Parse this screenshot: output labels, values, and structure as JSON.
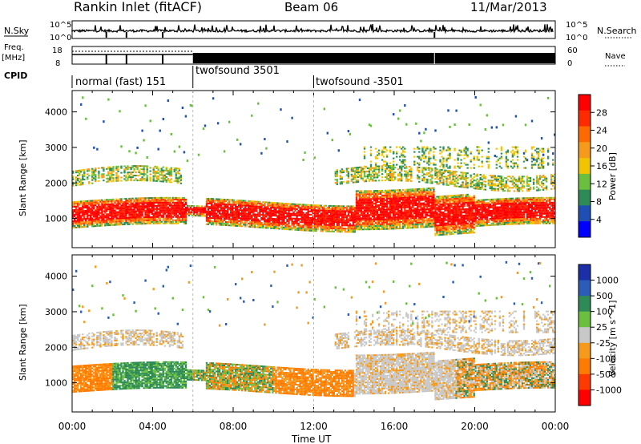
{
  "header": {
    "station": "Rankin Inlet (fitACF)",
    "beam": "Beam 06",
    "date": "11/Mar/2013"
  },
  "noise_panel": {
    "left_label": "N.Sky",
    "right_label": "N.Search",
    "ticks_left": [
      "10^5",
      "10^0"
    ],
    "ticks_right": [
      "10^5",
      "10^0"
    ]
  },
  "freq_panel": {
    "left_label_line1": "Freq.",
    "left_label_line2": "[MHz]",
    "ticks_left": [
      "18",
      "8"
    ],
    "right_label": "Nave",
    "ticks_right": [
      "60",
      "0"
    ]
  },
  "cpid_panel": {
    "label": "CPID",
    "segments": [
      {
        "label": "normal (fast) 151",
        "start_h": 0,
        "end_h": 6
      },
      {
        "label": "twofsound 3501",
        "start_h": 6,
        "end_h": 12
      },
      {
        "label": "twofsound -3501",
        "start_h": 12,
        "end_h": 24
      }
    ]
  },
  "colors": {
    "power": [
      "#0000ff",
      "#1f4fb4",
      "#2e8b57",
      "#6abf3e",
      "#f2c300",
      "#f59a1a",
      "#ff6a00",
      "#ff2a00",
      "#ff0000"
    ],
    "velocity": [
      "#1a2fa8",
      "#2b5cb8",
      "#2e8b57",
      "#6abf3e",
      "#c8c8c8",
      "#f59a1a",
      "#ff7a00",
      "#ff3a00",
      "#ff0000"
    ]
  },
  "chart_data": [
    {
      "type": "heatmap",
      "name": "power",
      "ylabel": "Slant Range [km]",
      "yticks": [
        1000,
        2000,
        3000,
        4000
      ],
      "ylim": [
        180,
        4600
      ],
      "xlim": [
        0,
        24
      ],
      "colorbar_label": "Power [dB]",
      "colorbar_ticks": [
        "28",
        "24",
        "20",
        "16",
        "12",
        "8",
        "4"
      ]
    },
    {
      "type": "heatmap",
      "name": "velocity",
      "ylabel": "Slant Range [km]",
      "yticks": [
        1000,
        2000,
        3000,
        4000
      ],
      "ylim": [
        180,
        4600
      ],
      "xlim": [
        0,
        24
      ],
      "xlabel": "Time UT",
      "xticks": [
        "00:00",
        "04:00",
        "08:00",
        "12:00",
        "16:00",
        "20:00",
        "00:00"
      ],
      "colorbar_label": "Velocity [m s^-1]",
      "colorbar_ticks": [
        "1000",
        "500",
        "100",
        "25",
        "-25",
        "-100",
        "-500",
        "-1000"
      ]
    }
  ]
}
